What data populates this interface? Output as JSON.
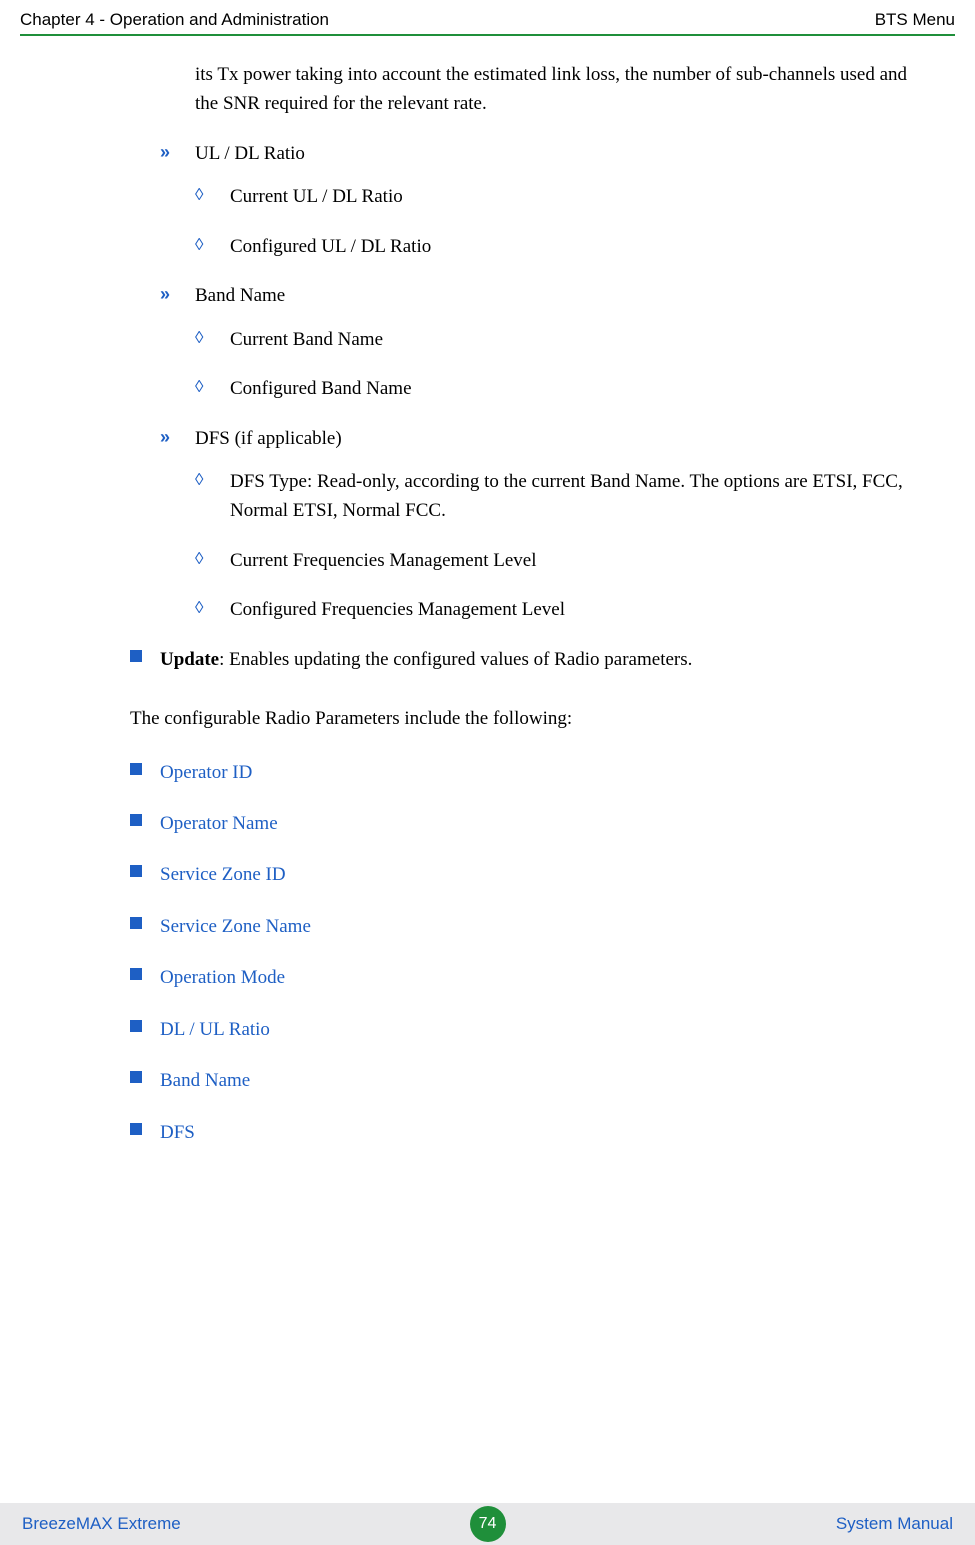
{
  "header": {
    "left": "Chapter 4 - Operation and Administration",
    "right": "BTS Menu"
  },
  "intro_paragraph": "its Tx power taking into account the estimated link loss, the number of sub-channels used and the SNR required for the relevant rate.",
  "chevron_sections": [
    {
      "title": "UL / DL Ratio",
      "diamonds": [
        "Current UL / DL Ratio",
        "Configured UL / DL Ratio"
      ]
    },
    {
      "title": "Band Name",
      "diamonds": [
        "Current Band Name",
        "Configured Band Name"
      ]
    },
    {
      "title": "DFS (if applicable)",
      "diamonds": [
        "DFS Type: Read-only, according to the current Band Name. The options are ETSI, FCC, Normal ETSI, Normal FCC.",
        "Current Frequencies Management Level",
        "Configured Frequencies Management Level"
      ]
    }
  ],
  "update_item": {
    "bold": "Update",
    "rest": ": Enables updating the configured values of Radio parameters."
  },
  "configurable_intro": "The configurable Radio Parameters include the following:",
  "link_items": [
    "Operator ID",
    "Operator Name",
    "Service Zone ID",
    "Service Zone Name",
    "Operation Mode",
    "DL / UL Ratio",
    "Band Name",
    "DFS"
  ],
  "footer": {
    "left": "BreezeMAX Extreme",
    "page": "74",
    "right": "System Manual"
  },
  "colors": {
    "accent_blue": "#1e5fc4",
    "accent_green": "#1f8f3a",
    "footer_bg": "#e8e8ea"
  }
}
